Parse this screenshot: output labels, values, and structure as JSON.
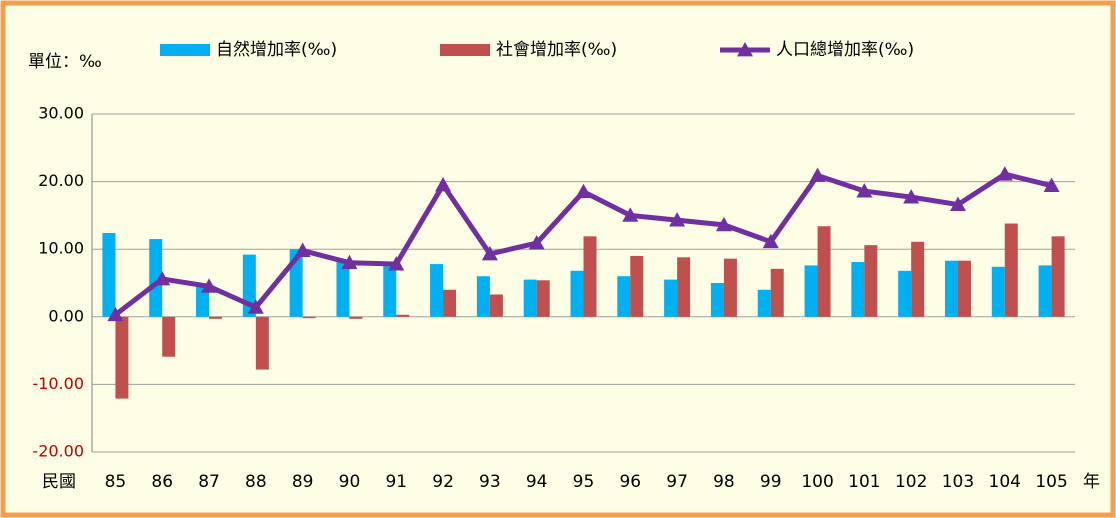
{
  "chart_data": {
    "type": "bar-line",
    "unit_label": "單位：‰",
    "x_label_prefix": "民國",
    "x_label_suffix": "年",
    "categories": [
      "85",
      "86",
      "87",
      "88",
      "89",
      "90",
      "91",
      "92",
      "93",
      "94",
      "95",
      "96",
      "97",
      "98",
      "99",
      "100",
      "101",
      "102",
      "103",
      "104",
      "105"
    ],
    "series": [
      {
        "name": "自然增加率(‰)",
        "type": "bar",
        "color": "#00b0f0",
        "values": [
          12.4,
          11.5,
          4.7,
          9.2,
          10.0,
          8.3,
          7.5,
          7.8,
          6.0,
          5.5,
          6.8,
          6.0,
          5.5,
          5.0,
          4.0,
          7.6,
          8.1,
          6.8,
          8.3,
          7.4,
          7.6
        ]
      },
      {
        "name": "社會增加率(‰)",
        "type": "bar",
        "color": "#c0504d",
        "values": [
          -12.1,
          -5.9,
          -0.3,
          -7.8,
          -0.2,
          -0.3,
          0.3,
          4.0,
          3.3,
          5.4,
          11.9,
          9.0,
          8.8,
          8.6,
          7.1,
          13.4,
          10.6,
          11.1,
          8.3,
          13.8,
          11.9
        ]
      },
      {
        "name": "人口總增加率(‰)",
        "type": "line",
        "color": "#7030a0",
        "values": [
          0.3,
          5.6,
          4.5,
          1.4,
          9.8,
          8.0,
          7.8,
          19.5,
          9.3,
          10.9,
          18.5,
          15.0,
          14.3,
          13.6,
          11.1,
          20.9,
          18.6,
          17.7,
          16.6,
          21.1,
          19.4
        ]
      }
    ],
    "ylim": [
      -20,
      30
    ],
    "yticks": [
      {
        "value": 30,
        "label": "30.00"
      },
      {
        "value": 20,
        "label": "20.00"
      },
      {
        "value": 10,
        "label": "10.00"
      },
      {
        "value": 0,
        "label": "0.00"
      },
      {
        "value": -10,
        "label": "-10.00"
      },
      {
        "value": -20,
        "label": "-20.00"
      }
    ],
    "negative_tick_color": "#c00000",
    "grid": true
  }
}
